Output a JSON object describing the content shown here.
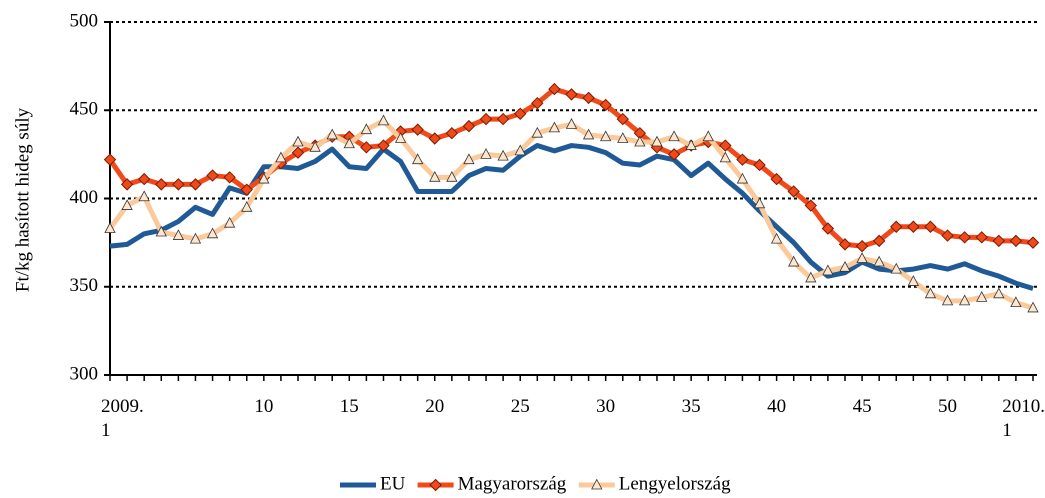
{
  "chart_data": {
    "type": "line",
    "ylabel": "Ft/kg hasított hideg súly",
    "categories": [
      "2009.\n1",
      null,
      null,
      null,
      null,
      null,
      null,
      null,
      null,
      "10",
      null,
      null,
      null,
      null,
      "15",
      null,
      null,
      null,
      null,
      "20",
      null,
      null,
      null,
      null,
      "25",
      null,
      null,
      null,
      null,
      "30",
      null,
      null,
      null,
      null,
      "35",
      null,
      null,
      null,
      null,
      "40",
      null,
      null,
      null,
      null,
      "45",
      null,
      null,
      null,
      null,
      "50",
      null,
      null,
      null,
      "2010.\n1",
      null
    ],
    "series": [
      {
        "name": "EU",
        "color": "#1f5a96",
        "values": [
          373,
          374,
          380,
          382,
          387,
          395,
          391,
          406,
          403,
          418,
          418,
          417,
          421,
          428,
          418,
          417,
          428,
          421,
          404,
          404,
          404,
          413,
          417,
          416,
          424,
          430,
          427,
          430,
          429,
          426,
          420,
          419,
          424,
          422,
          413,
          420,
          411,
          403,
          393,
          384,
          375,
          364,
          356,
          358,
          364,
          360,
          359,
          360,
          362,
          360,
          363,
          359,
          356,
          352,
          349
        ]
      },
      {
        "name": "Magyarország",
        "color": "#f04a1a",
        "marker": "diamond",
        "values": [
          422,
          408,
          411,
          408,
          408,
          408,
          413,
          412,
          405,
          412,
          420,
          426,
          430,
          435,
          435,
          429,
          430,
          438,
          439,
          434,
          437,
          441,
          445,
          445,
          448,
          454,
          462,
          459,
          457,
          453,
          445,
          437,
          429,
          425,
          430,
          432,
          430,
          422,
          419,
          411,
          404,
          396,
          383,
          374,
          373,
          376,
          384,
          384,
          384,
          379,
          378,
          378,
          376,
          376,
          375
        ]
      },
      {
        "name": "Lengyelország",
        "color": "#fbc99a",
        "marker": "triangle",
        "values": [
          383,
          396,
          401,
          381,
          379,
          377,
          380,
          386,
          395,
          411,
          423,
          432,
          429,
          436,
          431,
          439,
          444,
          434,
          422,
          412,
          412,
          422,
          425,
          424,
          427,
          437,
          440,
          442,
          436,
          435,
          434,
          432,
          432,
          435,
          430,
          435,
          423,
          411,
          397,
          377,
          364,
          355,
          359,
          361,
          366,
          364,
          360,
          353,
          346,
          342,
          342,
          344,
          346,
          341,
          338
        ]
      }
    ],
    "ylim": [
      300,
      500
    ],
    "yticks": [
      300,
      350,
      400,
      450,
      500
    ],
    "grid": true,
    "legend": "bottom"
  }
}
